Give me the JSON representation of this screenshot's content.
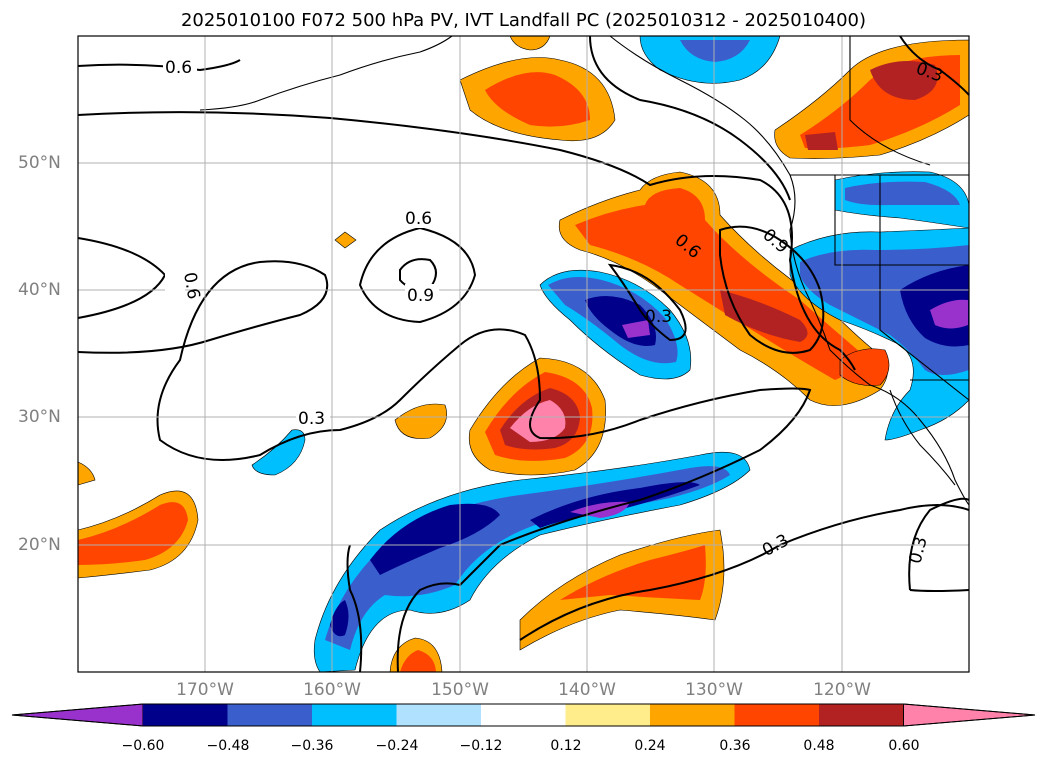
{
  "title": "2025010100 F072 500 hPa PV, IVT Landfall PC (2025010312 - 2025010400)",
  "map": {
    "lat_labels": [
      "50°N",
      "40°N",
      "30°N",
      "20°N"
    ],
    "lon_labels": [
      "170°W",
      "160°W",
      "150°W",
      "140°W",
      "130°W",
      "120°W"
    ],
    "contour_labels": [
      "0.6",
      "0.6",
      "0.6",
      "0.9",
      "0.6",
      "0.9",
      "0.3",
      "0.3",
      "0.3",
      "0.3",
      "0.3"
    ]
  },
  "colorbar": {
    "ticks": [
      "−0.60",
      "−0.48",
      "−0.36",
      "−0.24",
      "−0.12",
      "0.12",
      "0.24",
      "0.36",
      "0.48",
      "0.60"
    ],
    "colors": [
      "#9932cc",
      "#00008b",
      "#3a5fcd",
      "#00bfff",
      "#b0e2ff",
      "#ffffff",
      "#ffec8b",
      "#ffa500",
      "#ff4500",
      "#b22222",
      "#ff82ab"
    ]
  }
}
